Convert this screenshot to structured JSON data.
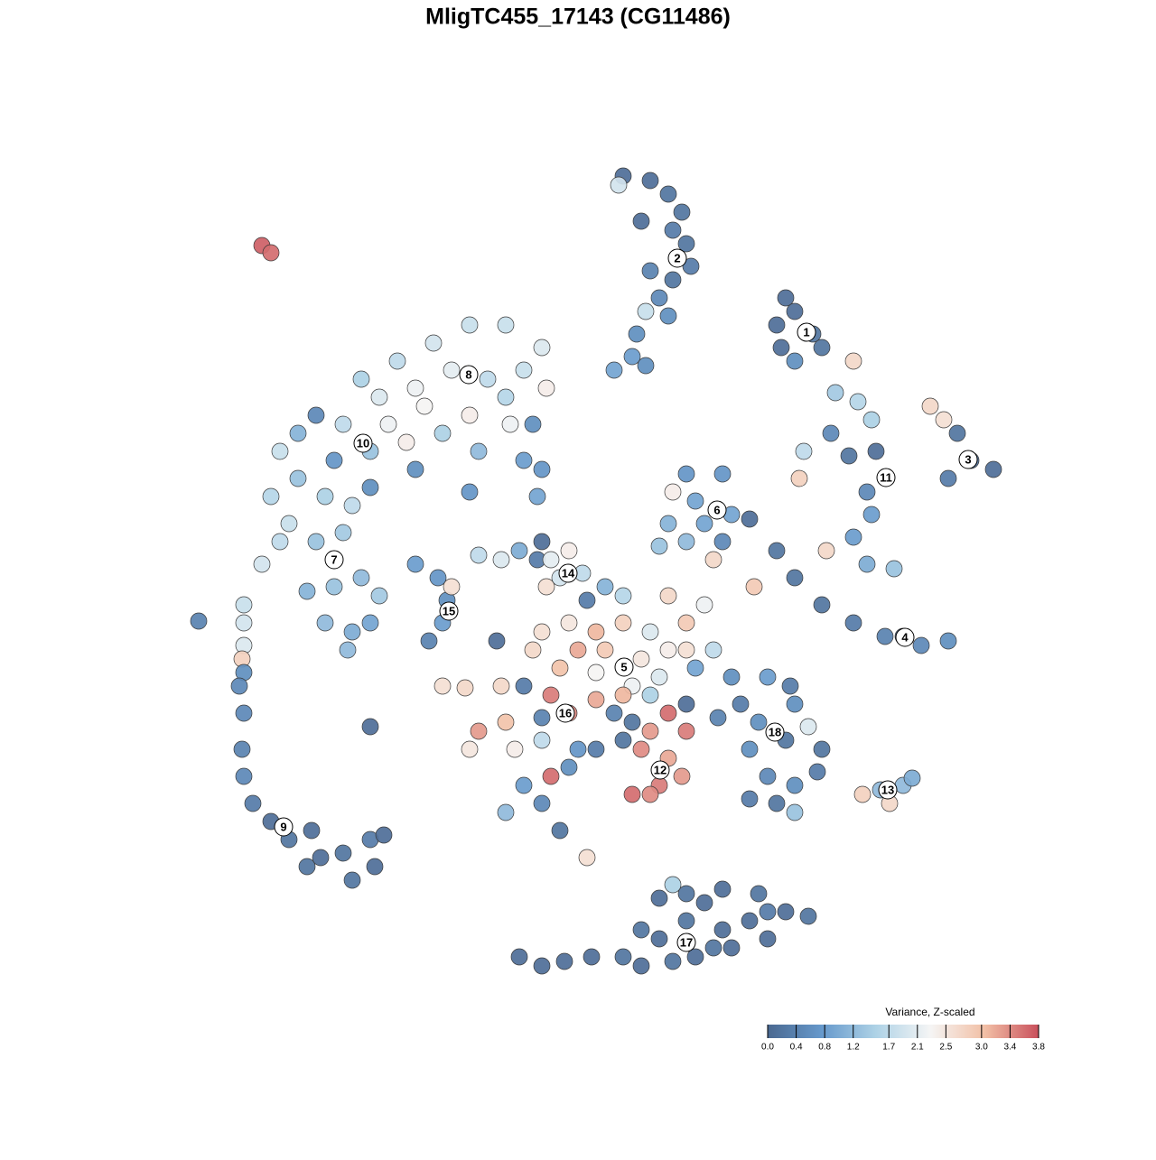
{
  "chart_data": {
    "type": "scatter",
    "title": "MligTC455_17143 (CG11486)",
    "x": [
      690,
      720,
      740,
      755,
      745,
      760,
      765,
      745,
      720,
      730,
      740,
      715,
      705,
      700,
      680,
      715,
      685,
      710,
      870,
      880,
      860,
      900,
      910,
      865,
      880,
      945,
      1030,
      1045,
      1060,
      1075,
      1100,
      1050,
      925,
      950,
      965,
      920,
      890,
      940,
      970,
      960,
      965,
      945,
      915,
      960,
      990,
      885,
      760,
      800,
      745,
      770,
      740,
      780,
      810,
      830,
      800,
      760,
      790,
      835,
      730,
      860,
      880,
      910,
      945,
      980,
      1020,
      1050,
      1000,
      400,
      440,
      480,
      520,
      560,
      600,
      420,
      460,
      500,
      540,
      580,
      605,
      380,
      430,
      470,
      520,
      560,
      350,
      330,
      310,
      370,
      410,
      450,
      490,
      530,
      565,
      590,
      580,
      600,
      595,
      460,
      520,
      300,
      330,
      360,
      390,
      410,
      320,
      350,
      380,
      290,
      310,
      340,
      370,
      400,
      420,
      360,
      390,
      410,
      385,
      270,
      270,
      270,
      268,
      270,
      265,
      270,
      268,
      270,
      280,
      300,
      320,
      345,
      340,
      380,
      390,
      410,
      425,
      415,
      355,
      460,
      485,
      495,
      500,
      490,
      475,
      410,
      220,
      290,
      300,
      530,
      555,
      575,
      600,
      595,
      610,
      630,
      620,
      605,
      645,
      670,
      650,
      690,
      600,
      630,
      660,
      690,
      720,
      640,
      670,
      710,
      740,
      620,
      660,
      700,
      730,
      760,
      760,
      740,
      780,
      770,
      790,
      590,
      580,
      555,
      610,
      660,
      690,
      720,
      550,
      600,
      630,
      560,
      530,
      520,
      570,
      600,
      640,
      630,
      610,
      580,
      560,
      600,
      620,
      490,
      515,
      650,
      680,
      700,
      720,
      740,
      760,
      710,
      740,
      755,
      730,
      700,
      720,
      690,
      660,
      760,
      795,
      810,
      850,
      875,
      880,
      820,
      840,
      830,
      870,
      895,
      910,
      905,
      880,
      850,
      830,
      860,
      880,
      955,
      975,
      985,
      1000,
      1010,
      575,
      600,
      625,
      655,
      690,
      710,
      745,
      770,
      790,
      730,
      760,
      800,
      830,
      850,
      870,
      895,
      840,
      800,
      760,
      730,
      745,
      710,
      810,
      850,
      780
    ],
    "y": [
      195,
      200,
      215,
      235,
      255,
      270,
      295,
      310,
      300,
      330,
      350,
      345,
      370,
      395,
      410,
      405,
      205,
      245,
      330,
      345,
      360,
      370,
      385,
      385,
      400,
      400,
      450,
      465,
      480,
      510,
      520,
      530,
      435,
      445,
      465,
      480,
      500,
      505,
      500,
      545,
      570,
      595,
      610,
      625,
      630,
      530,
      525,
      525,
      545,
      555,
      580,
      580,
      570,
      575,
      600,
      600,
      620,
      650,
      605,
      610,
      640,
      670,
      690,
      705,
      715,
      710,
      705,
      420,
      400,
      380,
      360,
      360,
      385,
      440,
      430,
      410,
      420,
      410,
      430,
      470,
      470,
      450,
      460,
      440,
      460,
      480,
      500,
      510,
      500,
      490,
      480,
      500,
      470,
      470,
      510,
      520,
      550,
      520,
      545,
      550,
      530,
      550,
      560,
      540,
      580,
      600,
      590,
      625,
      600,
      655,
      650,
      640,
      660,
      690,
      700,
      690,
      720,
      670,
      690,
      715,
      730,
      745,
      760,
      790,
      830,
      860,
      890,
      910,
      930,
      920,
      960,
      945,
      975,
      930,
      925,
      960,
      950,
      625,
      640,
      665,
      650,
      690,
      710,
      805,
      688,
      272,
      280,
      615,
      620,
      610,
      600,
      620,
      620,
      610,
      640,
      650,
      635,
      650,
      665,
      660,
      700,
      690,
      700,
      690,
      700,
      720,
      720,
      730,
      720,
      740,
      745,
      760,
      750,
      720,
      690,
      660,
      670,
      740,
      720,
      720,
      760,
      760,
      770,
      775,
      770,
      770,
      710,
      795,
      790,
      800,
      810,
      830,
      830,
      820,
      830,
      850,
      860,
      870,
      900,
      890,
      920,
      760,
      762,
      950,
      790,
      800,
      810,
      790,
      810,
      830,
      840,
      860,
      870,
      880,
      880,
      820,
      830,
      780,
      795,
      750,
      750,
      760,
      780,
      780,
      800,
      830,
      820,
      805,
      830,
      855,
      870,
      860,
      885,
      890,
      900,
      880,
      875,
      890,
      870,
      862,
      1060,
      1070,
      1065,
      1060,
      1060,
      1070,
      1065,
      1060,
      1050,
      1040,
      1020,
      1030,
      1020,
      1010,
      1010,
      1015,
      990,
      985,
      990,
      995,
      980,
      1030,
      1050,
      1040,
      1000
    ],
    "values": [
      0.1,
      0.1,
      0.2,
      0.2,
      0.3,
      0.2,
      0.3,
      0.2,
      0.4,
      0.5,
      0.6,
      1.8,
      0.6,
      0.8,
      0.9,
      0.6,
      1.9,
      0.1,
      0.1,
      0.1,
      0.1,
      0.2,
      0.2,
      0.1,
      0.6,
      2.7,
      2.7,
      2.6,
      0.2,
      0.1,
      0.1,
      0.3,
      1.4,
      1.6,
      1.5,
      0.5,
      1.7,
      0.2,
      0.1,
      0.5,
      0.8,
      0.8,
      2.7,
      1.0,
      1.3,
      2.8,
      0.7,
      0.7,
      2.4,
      0.9,
      1.1,
      0.9,
      0.9,
      0.1,
      0.5,
      1.2,
      2.7,
      2.9,
      1.3,
      0.2,
      0.2,
      0.2,
      0.3,
      0.4,
      0.5,
      0.6,
      0.1,
      1.5,
      1.7,
      1.9,
      1.8,
      1.8,
      2.0,
      2.0,
      2.2,
      2.1,
      1.7,
      1.8,
      2.4,
      1.7,
      2.2,
      2.3,
      2.4,
      1.6,
      0.5,
      1.1,
      1.8,
      0.7,
      1.3,
      2.4,
      1.5,
      1.2,
      2.2,
      0.6,
      0.8,
      0.7,
      0.9,
      0.6,
      0.7,
      1.6,
      1.3,
      1.5,
      1.7,
      0.6,
      1.8,
      1.3,
      1.4,
      1.9,
      1.7,
      1.1,
      1.3,
      1.2,
      1.4,
      1.2,
      1.0,
      0.9,
      1.2,
      1.8,
      1.9,
      2.0,
      2.8,
      0.6,
      0.5,
      0.5,
      0.4,
      0.5,
      0.3,
      0.1,
      0.2,
      0.1,
      0.2,
      0.2,
      0.2,
      0.3,
      0.1,
      0.1,
      0.1,
      0.8,
      0.7,
      0.6,
      2.6,
      0.8,
      0.4,
      0.1,
      0.4,
      3.7,
      3.6,
      1.7,
      2.0,
      1.0,
      0.1,
      0.3,
      2.1,
      2.4,
      1.9,
      2.6,
      1.7,
      1.1,
      0.3,
      1.6,
      2.6,
      2.5,
      3.1,
      2.8,
      2.0,
      3.2,
      2.9,
      2.5,
      2.4,
      3.0,
      2.3,
      2.2,
      2.0,
      2.6,
      2.9,
      2.7,
      2.2,
      0.9,
      1.7,
      2.7,
      0.3,
      2.7,
      3.5,
      3.2,
      3.1,
      1.5,
      0.1,
      0.4,
      3.4,
      3.0,
      3.3,
      2.5,
      2.4,
      1.7,
      0.7,
      0.6,
      3.6,
      0.8,
      1.2,
      0.5,
      0.2,
      2.6,
      2.7,
      2.6,
      0.4,
      0.2,
      3.3,
      3.6,
      3.5,
      3.4,
      3.2,
      3.3,
      3.5,
      3.6,
      3.4,
      0.2,
      0.3,
      0.1,
      0.4,
      0.6,
      0.8,
      0.3,
      0.6,
      0.3,
      0.6,
      0.6,
      0.2,
      2.0,
      0.2,
      0.3,
      0.6,
      0.5,
      0.3,
      0.2,
      1.3,
      2.8,
      1.2,
      2.7,
      1.2,
      1.0,
      0.1,
      0.1,
      0.1,
      0.1,
      0.2,
      0.1,
      0.2,
      0.1,
      0.2,
      0.1,
      0.2,
      0.1,
      0.1,
      0.3,
      0.1,
      0.2,
      0.2,
      0.1,
      0.2,
      0.1,
      1.5,
      0.2,
      0.1,
      0.1,
      0.1
    ],
    "xlim": [
      0,
      1280
    ],
    "ylim": [
      1280,
      0
    ],
    "annotations": [
      {
        "label": "1",
        "x": 893,
        "y": 368
      },
      {
        "label": "2",
        "x": 750,
        "y": 286
      },
      {
        "label": "3",
        "x": 1072,
        "y": 509
      },
      {
        "label": "4",
        "x": 1002,
        "y": 706
      },
      {
        "label": "5",
        "x": 691,
        "y": 739
      },
      {
        "label": "6",
        "x": 794,
        "y": 565
      },
      {
        "label": "7",
        "x": 370,
        "y": 620
      },
      {
        "label": "8",
        "x": 519,
        "y": 415
      },
      {
        "label": "9",
        "x": 314,
        "y": 916
      },
      {
        "label": "10",
        "x": 402,
        "y": 491
      },
      {
        "label": "11",
        "x": 981,
        "y": 529
      },
      {
        "label": "12",
        "x": 731,
        "y": 853
      },
      {
        "label": "13",
        "x": 983,
        "y": 875
      },
      {
        "label": "14",
        "x": 629,
        "y": 635
      },
      {
        "label": "15",
        "x": 497,
        "y": 677
      },
      {
        "label": "16",
        "x": 626,
        "y": 790
      },
      {
        "label": "17",
        "x": 760,
        "y": 1044
      },
      {
        "label": "18",
        "x": 858,
        "y": 811
      }
    ],
    "colorbar": {
      "title": "Variance, Z-scaled",
      "lim": [
        0,
        3.8
      ],
      "ticks": [
        {
          "value": 0,
          "label": "0.0"
        },
        0.4,
        0.8,
        1.2,
        1.7,
        2.1,
        2.5,
        {
          "value": 3,
          "label": "3.0"
        },
        3.4,
        3.8
      ],
      "colors": [
        "#4a6890",
        "#6699cc",
        "#aed2e6",
        "#f5f5f5",
        "#f2c0a6",
        "#c9505c"
      ]
    }
  }
}
